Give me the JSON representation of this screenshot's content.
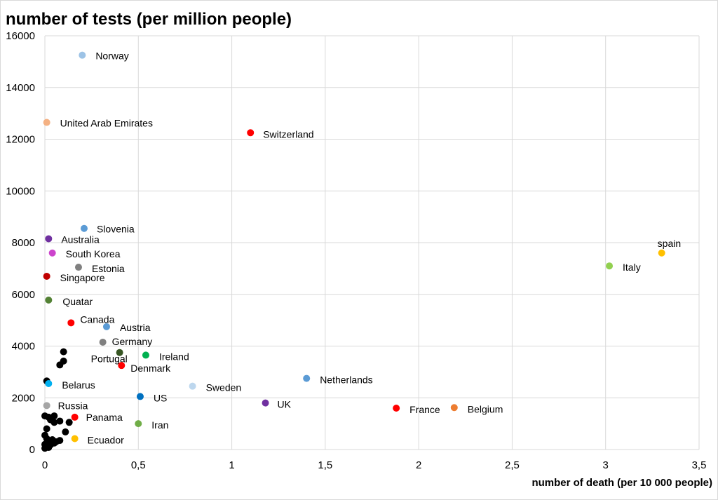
{
  "chart_data": {
    "type": "scatter",
    "ylabel": "number of tests (per million people)",
    "xlabel": "number of death (per 10 000 people)",
    "xlim": [
      0,
      3.5
    ],
    "ylim": [
      0,
      16000
    ],
    "grid": true,
    "xticks": [
      "0",
      "0,5",
      "1",
      "1,5",
      "2",
      "2,5",
      "3",
      "3,5"
    ],
    "yticks": [
      "0",
      "2000",
      "4000",
      "6000",
      "8000",
      "10000",
      "12000",
      "14000",
      "16000"
    ],
    "labeled_points": [
      {
        "label": "Norway",
        "x": 0.2,
        "y": 15250,
        "color": "#9dc3e6"
      },
      {
        "label": "United Arab Emirates",
        "x": 0.01,
        "y": 12650,
        "color": "#f4b183"
      },
      {
        "label": "Switzerland",
        "x": 1.1,
        "y": 12250,
        "color": "#ff0000"
      },
      {
        "label": "Slovenia",
        "x": 0.21,
        "y": 8550,
        "color": "#5b9bd5"
      },
      {
        "label": "Australia",
        "x": 0.02,
        "y": 8150,
        "color": "#7030a0"
      },
      {
        "label": "South Korea",
        "x": 0.04,
        "y": 7600,
        "color": "#cc44cc"
      },
      {
        "label": "Estonia",
        "x": 0.18,
        "y": 7050,
        "color": "#808080"
      },
      {
        "label": "Singapore",
        "x": 0.01,
        "y": 6700,
        "color": "#c00000"
      },
      {
        "label": "Quatar",
        "x": 0.02,
        "y": 5780,
        "color": "#548235"
      },
      {
        "label": "Canada",
        "x": 0.14,
        "y": 4900,
        "color": "#ff0000"
      },
      {
        "label": "Austria",
        "x": 0.33,
        "y": 4750,
        "color": "#5b9bd5"
      },
      {
        "label": "Germany",
        "x": 0.31,
        "y": 4150,
        "color": "#808080"
      },
      {
        "label": "Portugal",
        "x": 0.4,
        "y": 3750,
        "color": "#375623"
      },
      {
        "label": "Ireland",
        "x": 0.54,
        "y": 3650,
        "color": "#00b050"
      },
      {
        "label": "Denmark",
        "x": 0.41,
        "y": 3250,
        "color": "#ff0000"
      },
      {
        "label": "Belarus",
        "x": 0.02,
        "y": 2550,
        "color": "#00b0f0"
      },
      {
        "label": "Sweden",
        "x": 0.79,
        "y": 2450,
        "color": "#bdd7ee"
      },
      {
        "label": "Netherlands",
        "x": 1.4,
        "y": 2750,
        "color": "#5b9bd5"
      },
      {
        "label": "US",
        "x": 0.51,
        "y": 2050,
        "color": "#0070c0"
      },
      {
        "label": "UK",
        "x": 1.18,
        "y": 1800,
        "color": "#7030a0"
      },
      {
        "label": "France",
        "x": 1.88,
        "y": 1600,
        "color": "#ff0000"
      },
      {
        "label": "Belgium",
        "x": 2.19,
        "y": 1620,
        "color": "#ed7d31"
      },
      {
        "label": "Russia",
        "x": 0.01,
        "y": 1700,
        "color": "#a5a5a5"
      },
      {
        "label": "Panama",
        "x": 0.16,
        "y": 1250,
        "color": "#ff0000"
      },
      {
        "label": "Iran",
        "x": 0.5,
        "y": 1000,
        "color": "#70ad47"
      },
      {
        "label": "Ecuador",
        "x": 0.16,
        "y": 420,
        "color": "#ffc000"
      },
      {
        "label": "Italy",
        "x": 3.02,
        "y": 7100,
        "color": "#92d050"
      },
      {
        "label": "spain",
        "x": 3.3,
        "y": 7600,
        "color": "#ffc000"
      }
    ],
    "unlabeled_points": {
      "color": "#000000",
      "points": [
        {
          "x": 0.1,
          "y": 3780
        },
        {
          "x": 0.1,
          "y": 3420
        },
        {
          "x": 0.08,
          "y": 3270
        },
        {
          "x": 0.01,
          "y": 2650
        },
        {
          "x": 0.0,
          "y": 1300
        },
        {
          "x": 0.02,
          "y": 1250
        },
        {
          "x": 0.05,
          "y": 1300
        },
        {
          "x": 0.03,
          "y": 1150
        },
        {
          "x": 0.05,
          "y": 1050
        },
        {
          "x": 0.08,
          "y": 1100
        },
        {
          "x": 0.13,
          "y": 1050
        },
        {
          "x": 0.01,
          "y": 800
        },
        {
          "x": 0.11,
          "y": 680
        },
        {
          "x": 0.0,
          "y": 550
        },
        {
          "x": 0.01,
          "y": 420
        },
        {
          "x": 0.04,
          "y": 380
        },
        {
          "x": 0.06,
          "y": 300
        },
        {
          "x": 0.08,
          "y": 350
        },
        {
          "x": 0.02,
          "y": 250
        },
        {
          "x": 0.0,
          "y": 200
        },
        {
          "x": 0.01,
          "y": 100
        },
        {
          "x": 0.0,
          "y": 50
        },
        {
          "x": 0.02,
          "y": 80
        },
        {
          "x": 0.05,
          "y": 250
        },
        {
          "x": 0.03,
          "y": 180
        }
      ]
    }
  }
}
